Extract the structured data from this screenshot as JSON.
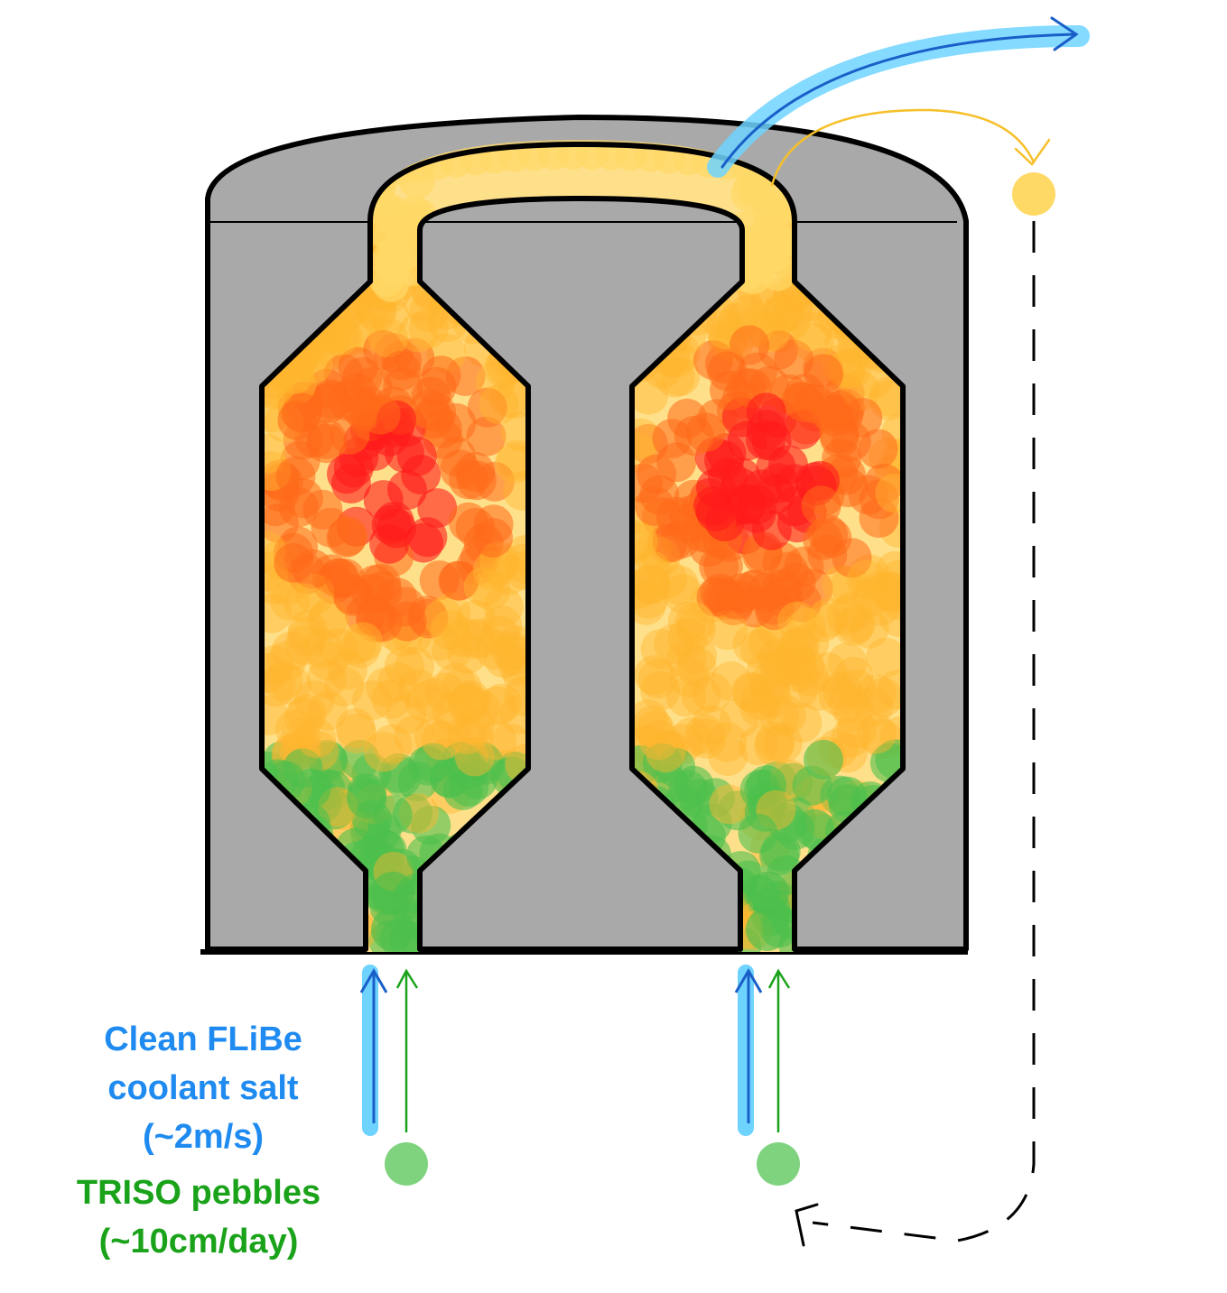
{
  "legend": {
    "coolant_line1": "Clean FLiBe",
    "coolant_line2": "coolant salt",
    "coolant_line3": "(~2m/s)",
    "pebble_line1": "TRISO pebbles",
    "pebble_line2": "(~10cm/day)"
  },
  "colors": {
    "vessel": "#a9a9a9",
    "coolant": "#1f8bf0",
    "coolant_glow": "#6fd3ff",
    "pebble_fresh": "#4cbf4c",
    "salt": "#ffd966",
    "pebble_warm": "#ffb62e",
    "pebble_hot": "#ff6a1a",
    "pebble_hottest": "#ff1a1a",
    "recirculation": "#f6c02a"
  }
}
